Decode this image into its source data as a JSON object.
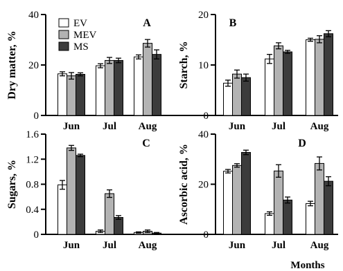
{
  "chart_data": [
    {
      "panel": "A",
      "type": "bar",
      "categories": [
        "Jun",
        "Jul",
        "Aug"
      ],
      "ylabel": "Dry matter, %",
      "ylim": [
        0,
        40
      ],
      "yticks": [
        0,
        20,
        40
      ],
      "series": [
        {
          "name": "EV",
          "color": "#ffffff",
          "values": [
            16.5,
            19.7,
            23.2
          ],
          "errors": [
            0.8,
            0.8,
            0.8
          ]
        },
        {
          "name": "MEV",
          "color": "#b3b3b3",
          "values": [
            15.7,
            21.8,
            28.6
          ],
          "errors": [
            1.3,
            1.2,
            1.5
          ]
        },
        {
          "name": "MS",
          "color": "#3c3c3c",
          "values": [
            16.3,
            21.8,
            24.2
          ],
          "errors": [
            0.6,
            0.9,
            1.8
          ]
        }
      ]
    },
    {
      "panel": "B",
      "type": "bar",
      "categories": [
        "Jun",
        "Jul",
        "Aug"
      ],
      "ylabel": "Starch, %",
      "ylim": [
        0,
        20
      ],
      "yticks": [
        0,
        10,
        20
      ],
      "series": [
        {
          "name": "EV",
          "color": "#ffffff",
          "values": [
            6.4,
            11.2,
            15.0
          ],
          "errors": [
            0.6,
            0.9,
            0.3
          ]
        },
        {
          "name": "MEV",
          "color": "#b3b3b3",
          "values": [
            8.2,
            13.8,
            15.1
          ],
          "errors": [
            0.8,
            0.6,
            0.7
          ]
        },
        {
          "name": "MS",
          "color": "#3c3c3c",
          "values": [
            7.5,
            12.6,
            16.2
          ],
          "errors": [
            0.7,
            0.3,
            0.6
          ]
        }
      ]
    },
    {
      "panel": "C",
      "type": "bar",
      "categories": [
        "Jun",
        "Jul",
        "Aug"
      ],
      "ylabel": "Sugars, %",
      "ylim": [
        0,
        1.6
      ],
      "yticks": [
        0,
        0.4,
        0.8,
        1.2,
        1.6
      ],
      "series": [
        {
          "name": "EV",
          "color": "#ffffff",
          "values": [
            0.79,
            0.05,
            0.03
          ],
          "errors": [
            0.07,
            0.02,
            0.01
          ]
        },
        {
          "name": "MEV",
          "color": "#b3b3b3",
          "values": [
            1.38,
            0.65,
            0.05
          ],
          "errors": [
            0.04,
            0.06,
            0.02
          ]
        },
        {
          "name": "MS",
          "color": "#3c3c3c",
          "values": [
            1.26,
            0.27,
            0.02
          ],
          "errors": [
            0.02,
            0.03,
            0.01
          ]
        }
      ]
    },
    {
      "panel": "D",
      "type": "bar",
      "categories": [
        "Jun",
        "Jul",
        "Aug"
      ],
      "ylabel": "Ascorbic acid, %",
      "ylim": [
        0,
        40
      ],
      "yticks": [
        0,
        20,
        40
      ],
      "xlabel": "Months",
      "series": [
        {
          "name": "EV",
          "color": "#ffffff",
          "values": [
            25.2,
            8.3,
            12.3
          ],
          "errors": [
            0.7,
            0.7,
            0.9
          ]
        },
        {
          "name": "MEV",
          "color": "#b3b3b3",
          "values": [
            27.5,
            25.3,
            28.3
          ],
          "errors": [
            0.7,
            2.5,
            2.6
          ]
        },
        {
          "name": "MS",
          "color": "#3c3c3c",
          "values": [
            32.7,
            13.7,
            21.2
          ],
          "errors": [
            0.9,
            1.2,
            1.8
          ]
        }
      ]
    }
  ],
  "legend": {
    "panel": "A",
    "placement": "top-left",
    "entries": [
      {
        "label": "EV",
        "color": "#ffffff"
      },
      {
        "label": "MEV",
        "color": "#b3b3b3"
      },
      {
        "label": "MS",
        "color": "#3c3c3c"
      }
    ]
  }
}
